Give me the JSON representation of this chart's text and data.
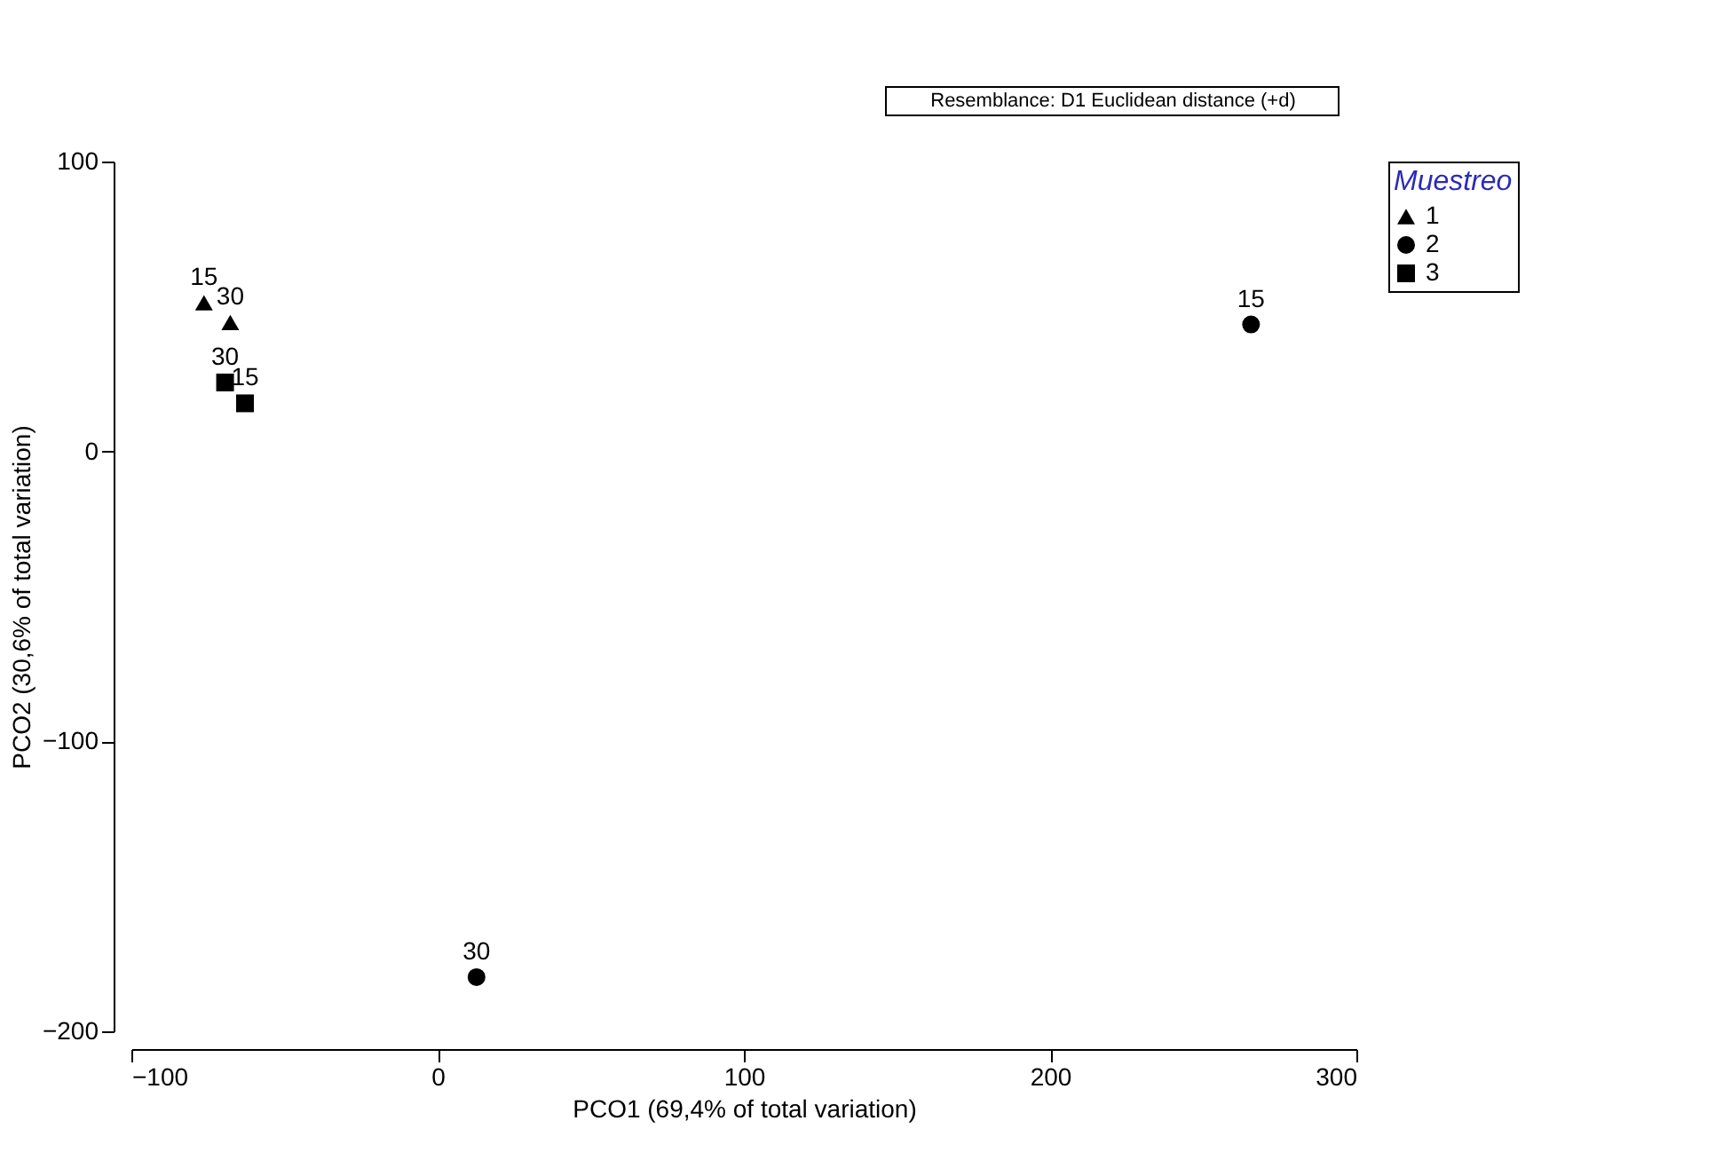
{
  "chart_data": {
    "type": "scatter",
    "xlabel": "PCO1 (69,4% of total variation)",
    "ylabel": "PCO2 (30,6% of total variation)",
    "legend_title": "Muestreo",
    "legend": "top right",
    "annotations": [
      "Resemblance: D1 Euclidean distance (+d)",
      {
        "text": "15",
        "x": -76.3,
        "y": 51.3
      },
      {
        "text": "30",
        "x": -67.7,
        "y": 44.5
      },
      {
        "text": "15",
        "x": 265.6,
        "y": 43.8
      },
      {
        "text": "30",
        "x": 12.7,
        "y": -181.3
      },
      {
        "text": "15",
        "x": -62.9,
        "y": 16.6
      },
      {
        "text": "30",
        "x": -69.4,
        "y": 23.8
      }
    ],
    "xlim": [
      -100,
      300
    ],
    "xticks": [
      -100,
      0,
      100,
      200,
      300
    ],
    "ylim": [
      -200,
      100
    ],
    "yticks": [
      -200,
      -100,
      0,
      100
    ],
    "grid": false,
    "series": [
      {
        "name": "1",
        "color": "#000000",
        "marker": "triangle",
        "x": [
          -76.3,
          -67.7
        ],
        "values": [
          51.3,
          44.5
        ]
      },
      {
        "name": "2",
        "color": "#000000",
        "marker": "circle",
        "x": [
          265.6,
          12.7
        ],
        "values": [
          43.8,
          -181.3
        ]
      },
      {
        "name": "3",
        "color": "#000000",
        "marker": "square",
        "x": [
          -62.9,
          -69.4
        ],
        "values": [
          16.6,
          23.8
        ]
      }
    ]
  }
}
